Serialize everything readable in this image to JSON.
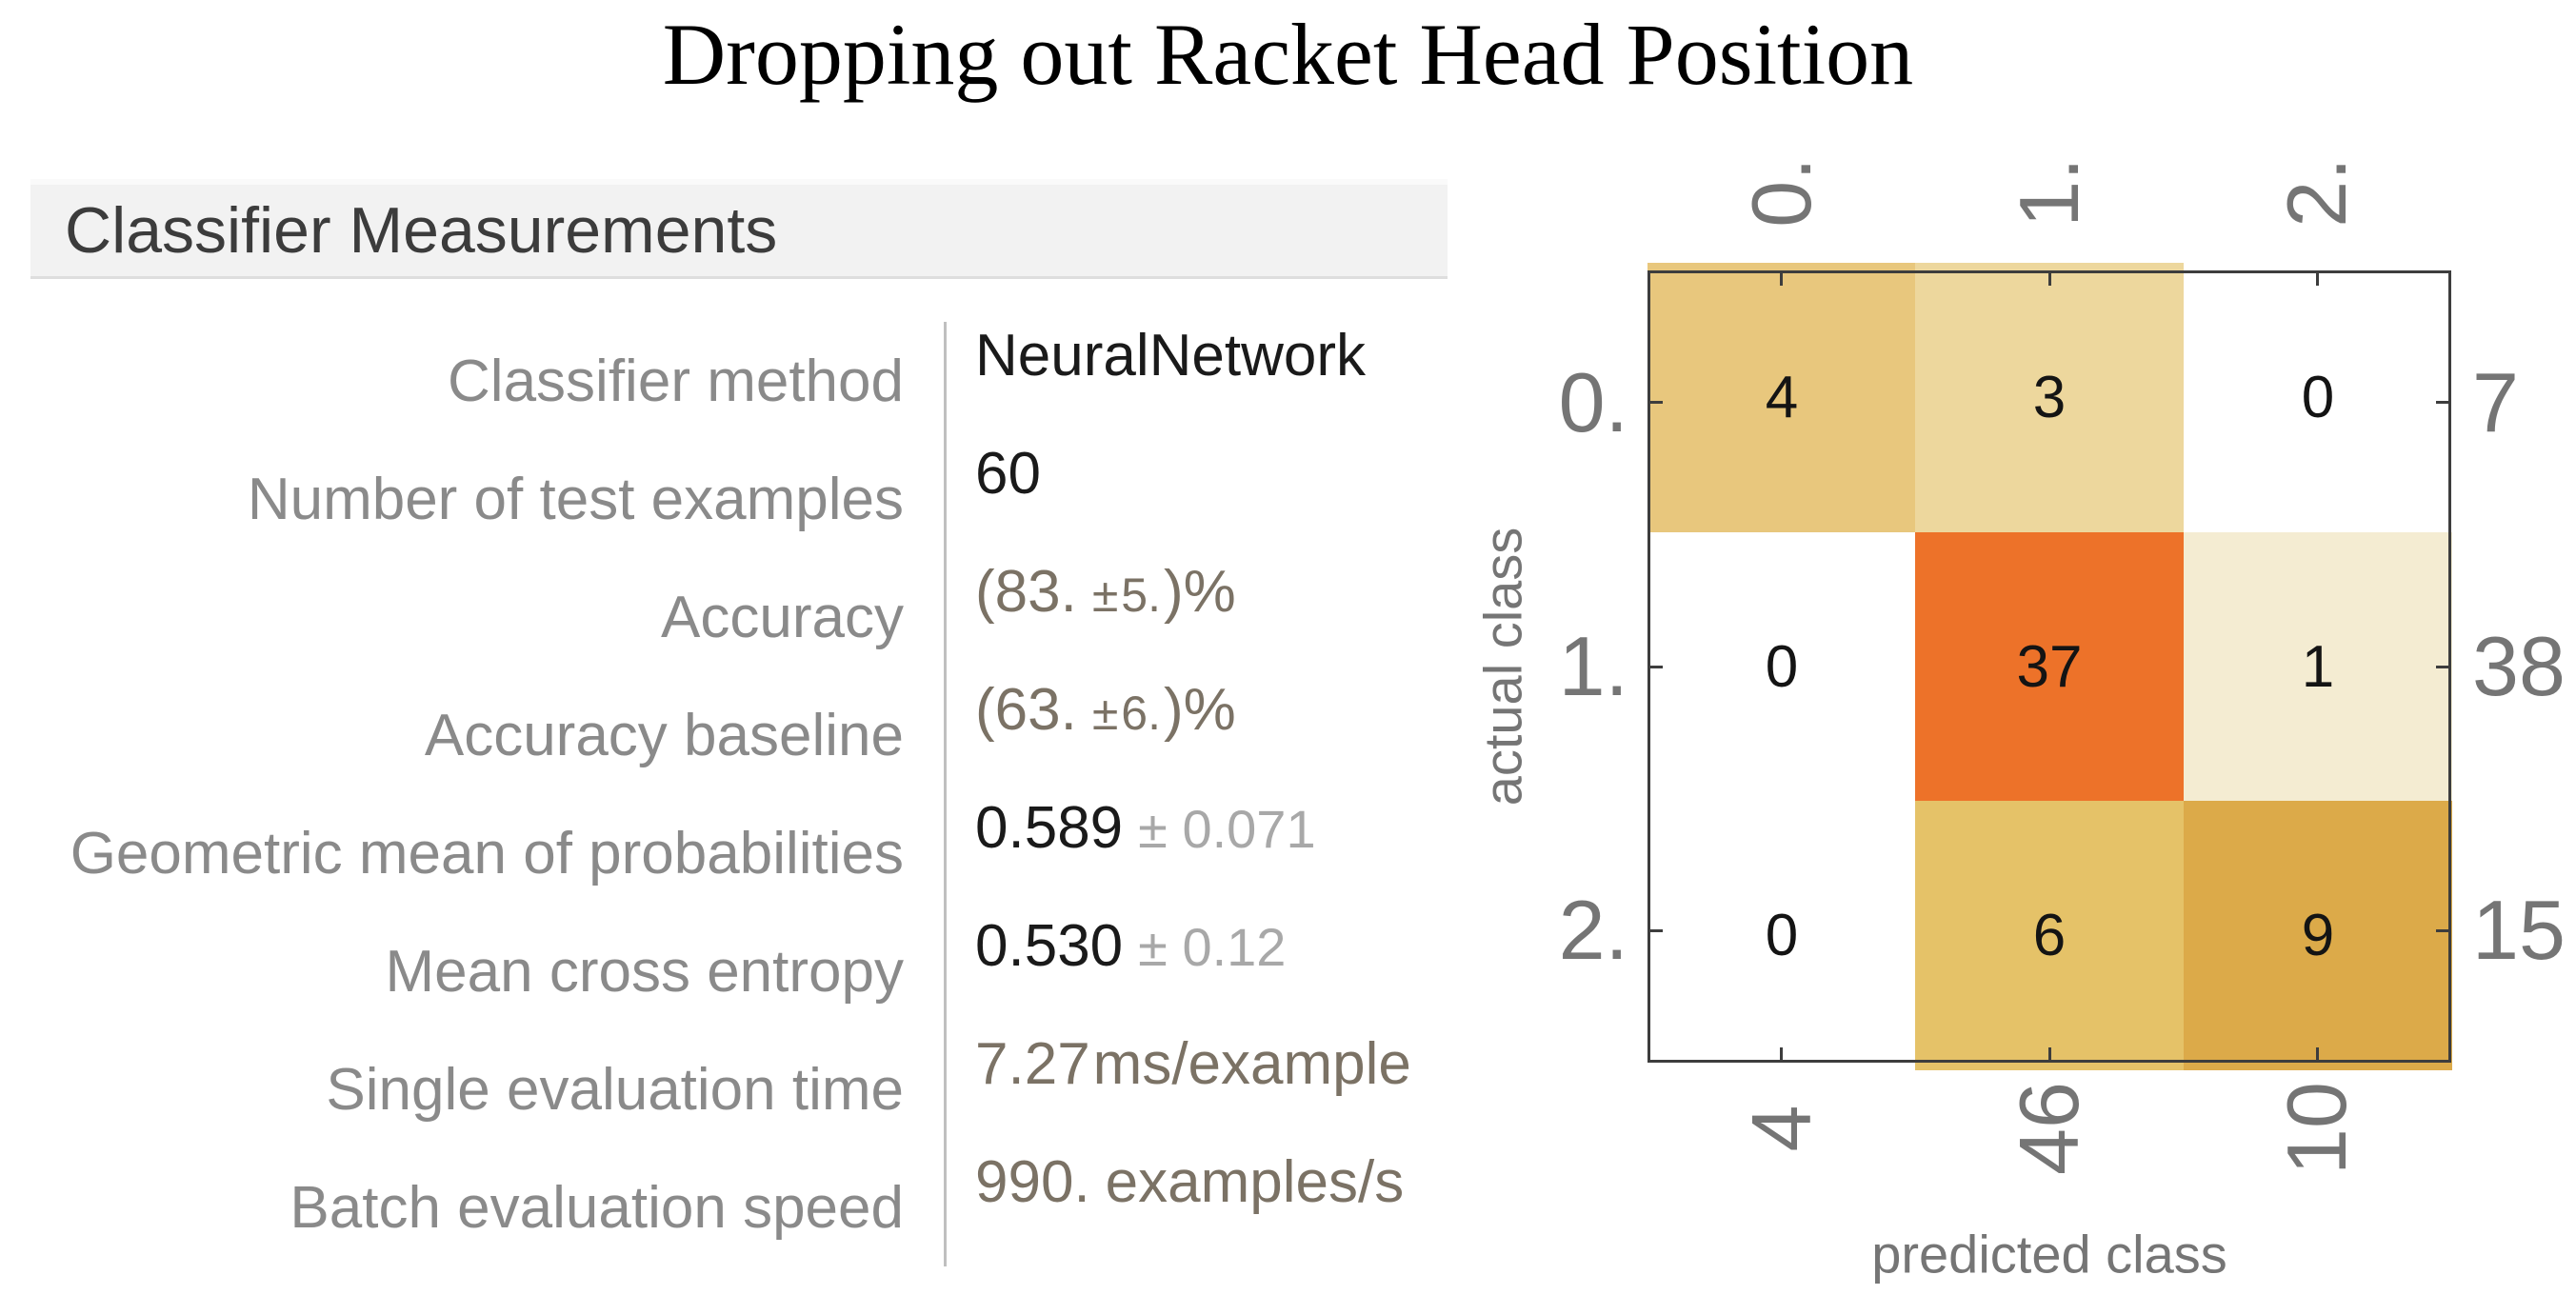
{
  "title": "Dropping out Racket Head Position",
  "measurements_panel": {
    "header": "Classifier Measurements",
    "rows": [
      {
        "label": "Classifier method",
        "value_parts": [
          {
            "text": "NeuralNetwork",
            "style": "plain"
          }
        ]
      },
      {
        "label": "Number of test examples",
        "value_parts": [
          {
            "text": "60",
            "style": "plain"
          }
        ]
      },
      {
        "label": "Accuracy",
        "value_parts": [
          {
            "text": "(83.",
            "style": "accent"
          },
          {
            "text": "±",
            "style": "accent-small"
          },
          {
            "text": "5.",
            "style": "accent-small",
            "tight": true
          },
          {
            "text": ")%",
            "style": "accent",
            "tight": true
          }
        ]
      },
      {
        "label": "Accuracy baseline",
        "value_parts": [
          {
            "text": "(63.",
            "style": "accent"
          },
          {
            "text": "±",
            "style": "accent-small"
          },
          {
            "text": "6.",
            "style": "accent-small",
            "tight": true
          },
          {
            "text": ")%",
            "style": "accent",
            "tight": true
          }
        ]
      },
      {
        "label": "Geometric mean of probabilities",
        "value_parts": [
          {
            "text": "0.589",
            "style": "plain"
          },
          {
            "text": "± 0.071",
            "style": "muted"
          }
        ]
      },
      {
        "label": "Mean cross entropy",
        "value_parts": [
          {
            "text": "0.530",
            "style": "plain"
          },
          {
            "text": "± 0.12",
            "style": "muted"
          }
        ]
      },
      {
        "label": "Single evaluation time",
        "value_parts": [
          {
            "text": "7.27",
            "style": "accent"
          },
          {
            "text": "ms/example",
            "style": "accent",
            "tight": true
          }
        ]
      },
      {
        "label": "Batch evaluation speed",
        "value_parts": [
          {
            "text": "990.",
            "style": "accent"
          },
          {
            "text": "examples/s",
            "style": "accent"
          }
        ]
      }
    ]
  },
  "chart_data": {
    "type": "heatmap",
    "title": "",
    "xlabel": "predicted class",
    "ylabel": "actual class",
    "x_tick_labels": [
      "0.",
      "1.",
      "2."
    ],
    "y_tick_labels": [
      "0.",
      "1.",
      "2."
    ],
    "matrix_values": [
      [
        4,
        3,
        0
      ],
      [
        0,
        37,
        1
      ],
      [
        0,
        6,
        9
      ]
    ],
    "row_totals": [
      "7",
      "38",
      "15"
    ],
    "col_totals": [
      "4",
      "46",
      "10"
    ],
    "cell_colors": [
      [
        "#e8c77d",
        "#edd79d",
        "#ffffff"
      ],
      [
        "#ffffff",
        "#ed7229",
        "#f4ecd2"
      ],
      [
        "#ffffff",
        "#e5c268",
        "#dcaa49"
      ]
    ],
    "grid": false,
    "legend": "none"
  },
  "colors": {
    "highlight_orange": "#ed7229",
    "accent_text": "#7b7265",
    "label_gray": "#8a8a8a",
    "tick_label_gray": "#757575",
    "muted_text": "#a8a8a8",
    "header_bg": "#f2f2f2",
    "frame": "#3d3d3d",
    "divider": "#bfbfbf"
  }
}
